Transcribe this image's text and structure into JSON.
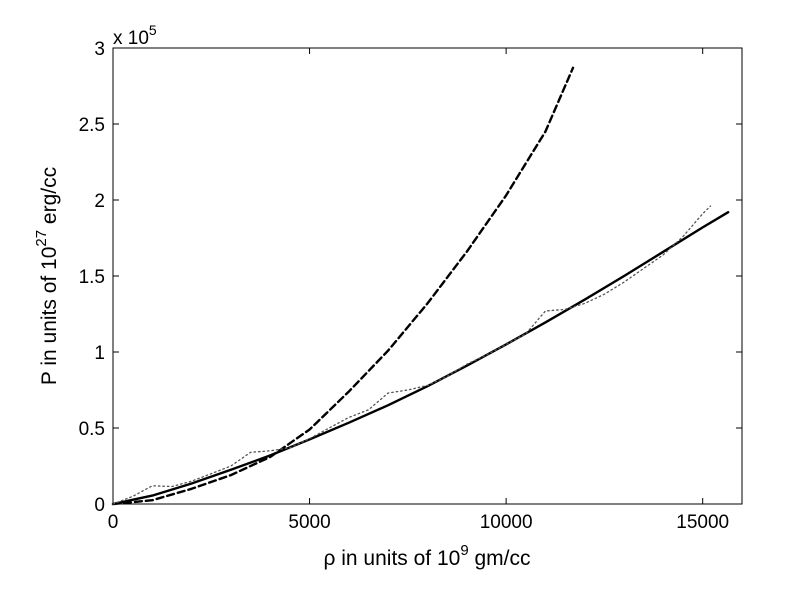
{
  "chart_data": {
    "type": "line",
    "xlabel": {
      "prefix": "ρ in units of 10",
      "sup": "9",
      "suffix": " gm/cc"
    },
    "ylabel": {
      "prefix": "P in units of 10",
      "sup": "27",
      "suffix": " erg/cc"
    },
    "y_multiplier": {
      "base": "x 10",
      "sup": "5"
    },
    "xlim": [
      0,
      16000
    ],
    "ylim": [
      0,
      300000
    ],
    "x_ticks": [
      0,
      5000,
      10000,
      15000
    ],
    "x_tick_labels": [
      "0",
      "5000",
      "10000",
      "15000"
    ],
    "y_ticks": [
      0,
      50000,
      100000,
      150000,
      200000,
      250000,
      300000
    ],
    "y_tick_labels": [
      "0",
      "0.5",
      "1",
      "1.5",
      "2",
      "2.5",
      "3"
    ],
    "grid": false,
    "series": [
      {
        "style": "solid",
        "color": "#000000",
        "x": [
          0,
          1000,
          2000,
          3000,
          4000,
          5000,
          6000,
          7000,
          8000,
          9000,
          10000,
          11000,
          12000,
          13000,
          14000,
          15000,
          15650
        ],
        "y": [
          0,
          5500,
          13500,
          22500,
          32000,
          42500,
          53500,
          65000,
          77500,
          91000,
          105000,
          119500,
          134500,
          150000,
          166000,
          182000,
          192000
        ]
      },
      {
        "style": "dashed",
        "color": "#000000",
        "x": [
          0,
          1000,
          2000,
          3000,
          4000,
          5000,
          6000,
          7000,
          8000,
          9000,
          10000,
          11000,
          11700
        ],
        "y": [
          0,
          2500,
          10000,
          19000,
          31000,
          49000,
          74000,
          101000,
          132000,
          166000,
          203000,
          245000,
          287000
        ]
      },
      {
        "style": "dotted",
        "color": "#555555",
        "x": [
          0,
          500,
          1000,
          1500,
          2000,
          2500,
          3000,
          3500,
          4000,
          4500,
          5000,
          5500,
          6000,
          6500,
          7000,
          7500,
          8000,
          8500,
          9000,
          9500,
          10000,
          10500,
          11000,
          11500,
          12000,
          12500,
          13000,
          13500,
          14000,
          14500,
          15000,
          15200
        ],
        "y": [
          0,
          5000,
          12000,
          11500,
          15000,
          20000,
          25000,
          34000,
          35000,
          37000,
          43000,
          50000,
          57000,
          62000,
          73000,
          75000,
          78000,
          84000,
          92000,
          98000,
          105000,
          112000,
          127000,
          128000,
          132000,
          138000,
          146000,
          155000,
          164000,
          176000,
          191000,
          196000
        ]
      }
    ]
  }
}
